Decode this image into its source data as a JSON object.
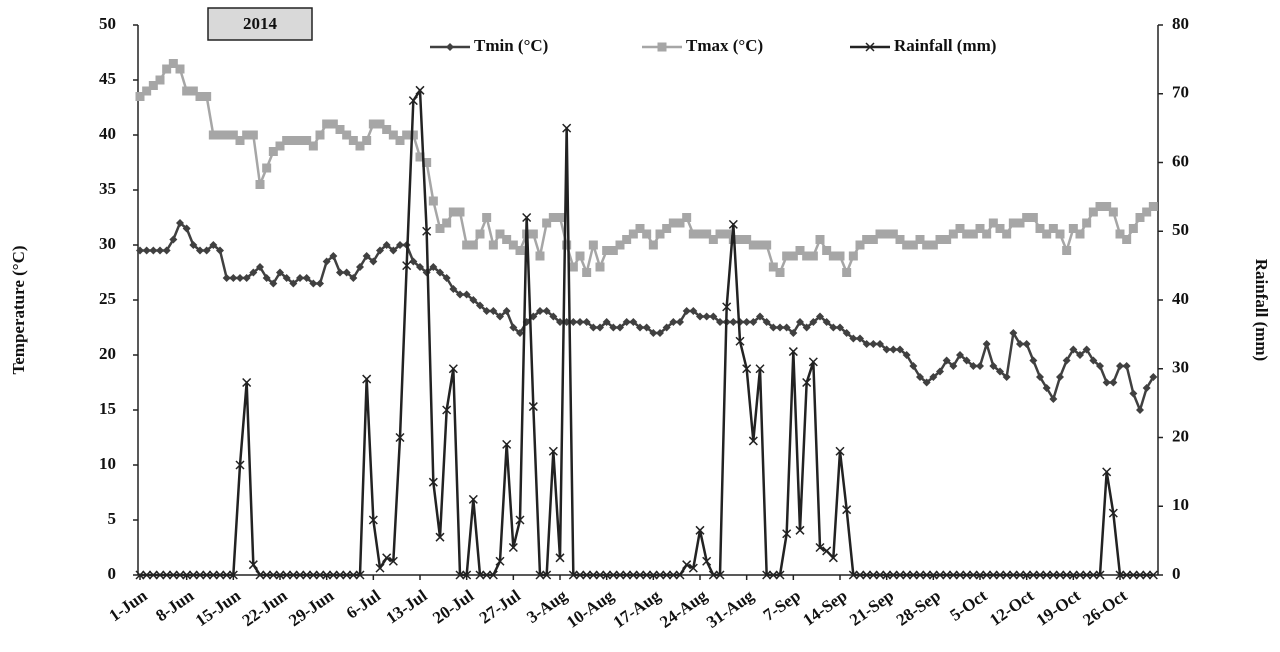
{
  "chart_data": {
    "type": "line",
    "annotation": "2014",
    "y_label": "Temperature (°C)",
    "y2_label": "Rainfall (mm)",
    "ylim": [
      0,
      50
    ],
    "yticks": [
      0,
      5,
      10,
      15,
      20,
      25,
      30,
      35,
      40,
      45,
      50
    ],
    "y2lim": [
      0,
      80
    ],
    "y2ticks": [
      0,
      10,
      20,
      30,
      40,
      50,
      60,
      70,
      80
    ],
    "grid": false,
    "legend": "top",
    "categories": [
      "1-Jun",
      null,
      null,
      null,
      null,
      null,
      null,
      "8-Jun",
      null,
      null,
      null,
      null,
      null,
      null,
      "15-Jun",
      null,
      null,
      null,
      null,
      null,
      null,
      "22-Jun",
      null,
      null,
      null,
      null,
      null,
      null,
      "29-Jun",
      null,
      null,
      null,
      null,
      null,
      null,
      "6-Jul",
      null,
      null,
      null,
      null,
      null,
      null,
      "13-Jul",
      null,
      null,
      null,
      null,
      null,
      null,
      "20-Jul",
      null,
      null,
      null,
      null,
      null,
      null,
      "27-Jul",
      null,
      null,
      null,
      null,
      null,
      null,
      "3-Aug",
      null,
      null,
      null,
      null,
      null,
      null,
      "10-Aug",
      null,
      null,
      null,
      null,
      null,
      null,
      "17-Aug",
      null,
      null,
      null,
      null,
      null,
      null,
      "24-Aug",
      null,
      null,
      null,
      null,
      null,
      null,
      "31-Aug",
      null,
      null,
      null,
      null,
      null,
      null,
      "7-Sep",
      null,
      null,
      null,
      null,
      null,
      null,
      "14-Sep",
      null,
      null,
      null,
      null,
      null,
      null,
      "21-Sep",
      null,
      null,
      null,
      null,
      null,
      null,
      "28-Sep",
      null,
      null,
      null,
      null,
      null,
      null,
      "5-Oct",
      null,
      null,
      null,
      null,
      null,
      null,
      "12-Oct",
      null,
      null,
      null,
      null,
      null,
      null,
      "19-Oct",
      null,
      null,
      null,
      null,
      null,
      null,
      "26-Oct",
      null,
      null,
      null,
      null,
      null
    ],
    "series": [
      {
        "name": "Tmin (°C)",
        "color": "#404040",
        "marker": "diamond",
        "axis": "y",
        "values": [
          29.5,
          29.5,
          29.5,
          29.5,
          29.5,
          30.5,
          32,
          31.5,
          30,
          29.5,
          29.5,
          30,
          29.5,
          27,
          27,
          27,
          27,
          27.5,
          28,
          27,
          26.5,
          27.5,
          27,
          26.5,
          27,
          27,
          26.5,
          26.5,
          28.5,
          29,
          27.5,
          27.5,
          27,
          28,
          29,
          28.5,
          29.5,
          30,
          29.5,
          30,
          30,
          28.5,
          28,
          27.5,
          28,
          27.5,
          27,
          26,
          25.5,
          25.5,
          25,
          24.5,
          24,
          24,
          23.5,
          24,
          22.5,
          22,
          23,
          23.5,
          24,
          24,
          23.5,
          23,
          23,
          23,
          23,
          23,
          22.5,
          22.5,
          23,
          22.5,
          22.5,
          23,
          23,
          22.5,
          22.5,
          22,
          22,
          22.5,
          23,
          23,
          24,
          24,
          23.5,
          23.5,
          23.5,
          23,
          23,
          23,
          23,
          23,
          23,
          23.5,
          23,
          22.5,
          22.5,
          22.5,
          22,
          23,
          22.5,
          23,
          23.5,
          23,
          22.5,
          22.5,
          22,
          21.5,
          21.5,
          21,
          21,
          21,
          20.5,
          20.5,
          20.5,
          20,
          19,
          18,
          17.5,
          18,
          18.5,
          19.5,
          19,
          20,
          19.5,
          19,
          19,
          21,
          19,
          18.5,
          18,
          22,
          21,
          21,
          19.5,
          18,
          17,
          16,
          18,
          19.5,
          20.5,
          20,
          20.5,
          19.5,
          19,
          17.5,
          17.5,
          19,
          19,
          16.5,
          15,
          17,
          18
        ]
      },
      {
        "name": "Tmax (°C)",
        "color": "#a6a6a6",
        "marker": "square",
        "axis": "y",
        "values": [
          43.5,
          44,
          44.5,
          45,
          46,
          46.5,
          46,
          44,
          44,
          43.5,
          43.5,
          40,
          40,
          40,
          40,
          39.5,
          40,
          40,
          35.5,
          37,
          38.5,
          39,
          39.5,
          39.5,
          39.5,
          39.5,
          39,
          40,
          41,
          41,
          40.5,
          40,
          39.5,
          39,
          39.5,
          41,
          41,
          40.5,
          40,
          39.5,
          40,
          40,
          38,
          37.5,
          34,
          31.5,
          32,
          33,
          33,
          30,
          30,
          31,
          32.5,
          30,
          31,
          30.5,
          30,
          29.5,
          31,
          31,
          29,
          32,
          32.5,
          32.5,
          30,
          28,
          29,
          27.5,
          30,
          28,
          29.5,
          29.5,
          30,
          30.5,
          31,
          31.5,
          31,
          30,
          31,
          31.5,
          32,
          32,
          32.5,
          31,
          31,
          31,
          30.5,
          31,
          31,
          30.5,
          30.5,
          30.5,
          30,
          30,
          30,
          28,
          27.5,
          29,
          29,
          29.5,
          29,
          29,
          30.5,
          29.5,
          29,
          29,
          27.5,
          29,
          30,
          30.5,
          30.5,
          31,
          31,
          31,
          30.5,
          30,
          30,
          30.5,
          30,
          30,
          30.5,
          30.5,
          31,
          31.5,
          31,
          31,
          31.5,
          31,
          32,
          31.5,
          31,
          32,
          32,
          32.5,
          32.5,
          31.5,
          31,
          31.5,
          31,
          29.5,
          31.5,
          31,
          32,
          33,
          33.5,
          33.5,
          33,
          31,
          30.5,
          31.5,
          32.5,
          33,
          33.5
        ]
      },
      {
        "name": "Rainfall (mm)",
        "color": "#222222",
        "marker": "x",
        "axis": "y2",
        "values": [
          0,
          0,
          0,
          0,
          0,
          0,
          0,
          0,
          0,
          0,
          0,
          0,
          0,
          0,
          0,
          16,
          28,
          1.5,
          0,
          0,
          0,
          0,
          0,
          0,
          0,
          0,
          0,
          0,
          0,
          0,
          0,
          0,
          0,
          0,
          28.5,
          8,
          1,
          2.5,
          2,
          20,
          45,
          69,
          70.5,
          50,
          13.5,
          5.5,
          24,
          30,
          0,
          0,
          11,
          0,
          0,
          0,
          2,
          19,
          4,
          8,
          52,
          24.5,
          0,
          0,
          18,
          2.5,
          65,
          0,
          0,
          0,
          0,
          0,
          0,
          0,
          0,
          0,
          0,
          0,
          0,
          0,
          0,
          0,
          0,
          0,
          1.5,
          1,
          6.5,
          2,
          0,
          0,
          39,
          51,
          34,
          30,
          19.5,
          30,
          0,
          0,
          0,
          6,
          32.5,
          6.5,
          28,
          31,
          4,
          3.5,
          2.5,
          18,
          9.5,
          0,
          0,
          0,
          0,
          0,
          0,
          0,
          0,
          0,
          0,
          0,
          0,
          0,
          0,
          0,
          0,
          0,
          0,
          0,
          0,
          0,
          0,
          0,
          0,
          0,
          0,
          0,
          0,
          0,
          0,
          0,
          0,
          0,
          0,
          0,
          0,
          0,
          0,
          15,
          9,
          0,
          0,
          0,
          0,
          0,
          0
        ]
      }
    ]
  }
}
